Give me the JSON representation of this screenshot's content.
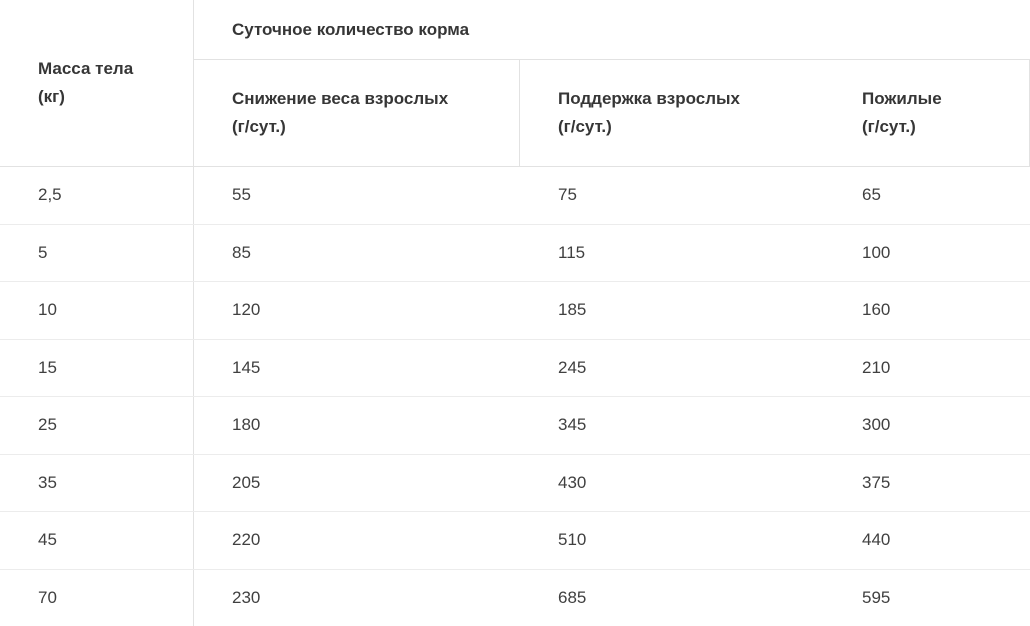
{
  "table": {
    "group_header": "Суточное количество корма",
    "weight_column": {
      "title": "Масса тела",
      "unit": "(кг)"
    },
    "columns": [
      {
        "title": "Снижение веса взрослых",
        "unit": "(г/сут.)"
      },
      {
        "title": "Поддержка взрослых",
        "unit": "(г/сут.)"
      },
      {
        "title": "Пожилые",
        "unit": "(г/сут.)"
      }
    ],
    "rows": [
      {
        "weight": "2,5",
        "values": [
          "55",
          "75",
          "65"
        ]
      },
      {
        "weight": "5",
        "values": [
          "85",
          "115",
          "100"
        ]
      },
      {
        "weight": "10",
        "values": [
          "120",
          "185",
          "160"
        ]
      },
      {
        "weight": "15",
        "values": [
          "145",
          "245",
          "210"
        ]
      },
      {
        "weight": "25",
        "values": [
          "180",
          "345",
          "300"
        ]
      },
      {
        "weight": "35",
        "values": [
          "205",
          "430",
          "375"
        ]
      },
      {
        "weight": "45",
        "values": [
          "220",
          "510",
          "440"
        ]
      },
      {
        "weight": "70",
        "values": [
          "230",
          "685",
          "595"
        ]
      }
    ]
  },
  "chart_data": {
    "type": "table",
    "title": "Суточное количество корма",
    "columns": [
      "Масса тела (кг)",
      "Снижение веса взрослых (г/сут.)",
      "Поддержка взрослых (г/сут.)",
      "Пожилые (г/сут.)"
    ],
    "rows": [
      [
        "2,5",
        55,
        75,
        65
      ],
      [
        "5",
        85,
        115,
        100
      ],
      [
        "10",
        120,
        185,
        160
      ],
      [
        "15",
        145,
        245,
        210
      ],
      [
        "25",
        180,
        345,
        300
      ],
      [
        "35",
        205,
        430,
        375
      ],
      [
        "45",
        220,
        510,
        440
      ],
      [
        "70",
        230,
        685,
        595
      ]
    ]
  }
}
